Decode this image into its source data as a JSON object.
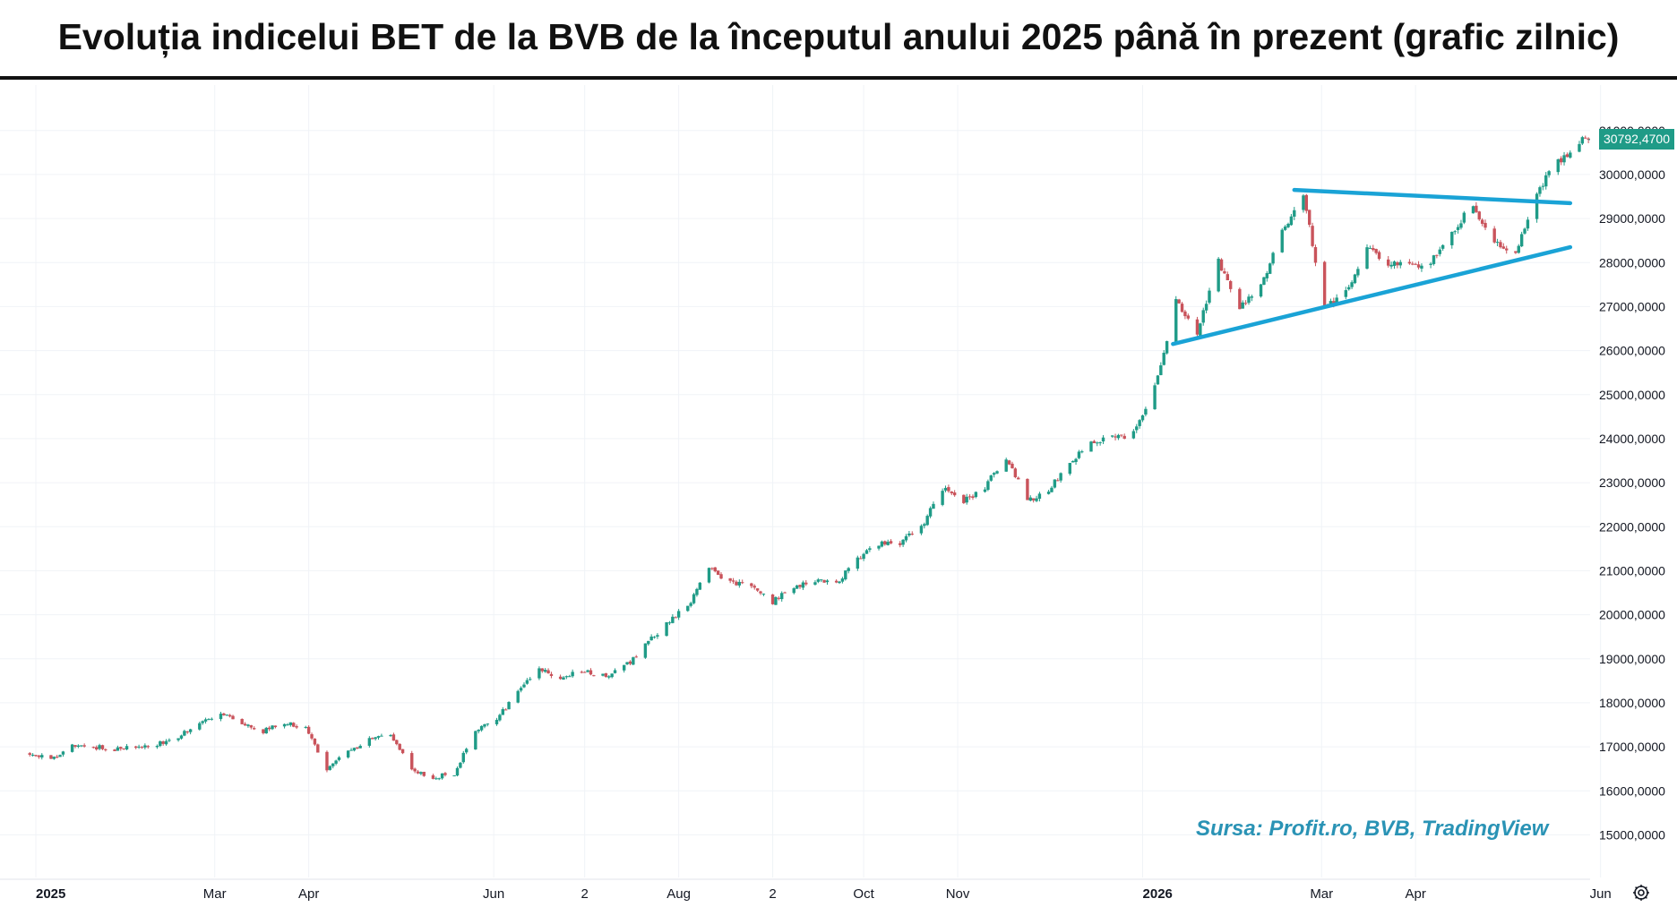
{
  "title": "Evoluția indicelui BET de la BVB de la începutul anului 2025 până în prezent (grafic zilnic)",
  "source": "Sursa: Profit.ro, BVB, TradingView",
  "last_price_label": "30792,4700",
  "colors": {
    "up": "#1f9b87",
    "down": "#c9535b",
    "trendline": "#1aa3d6",
    "badge": "#1f9b87",
    "grid": "#f0f3f7",
    "text": "#131722"
  },
  "icons": {
    "settings": "gear-icon"
  },
  "chart_data": {
    "type": "candlestick",
    "title": "Evoluția indicelui BET de la BVB de la începutul anului 2025 până în prezent (grafic zilnic)",
    "xlabel": "",
    "ylabel": "",
    "ylim": [
      14500,
      31300
    ],
    "x_range": [
      "2025-01-01",
      "2026-06-12"
    ],
    "y_ticks": [
      {
        "value": 15000,
        "label": "15000,0000"
      },
      {
        "value": 16000,
        "label": "16000,0000"
      },
      {
        "value": 17000,
        "label": "17000,0000"
      },
      {
        "value": 18000,
        "label": "18000,0000"
      },
      {
        "value": 19000,
        "label": "19000,0000"
      },
      {
        "value": 20000,
        "label": "20000,0000"
      },
      {
        "value": 21000,
        "label": "21000,0000"
      },
      {
        "value": 22000,
        "label": "22000,0000"
      },
      {
        "value": 23000,
        "label": "23000,0000"
      },
      {
        "value": 24000,
        "label": "24000,0000"
      },
      {
        "value": 25000,
        "label": "25000,0000"
      },
      {
        "value": 26000,
        "label": "26000,0000"
      },
      {
        "value": 27000,
        "label": "27000,0000"
      },
      {
        "value": 28000,
        "label": "28000,0000"
      },
      {
        "value": 29000,
        "label": "29000,0000"
      },
      {
        "value": 30000,
        "label": "30000,0000"
      },
      {
        "value": 31000,
        "label": "31000,0000"
      }
    ],
    "x_ticks": [
      {
        "date": "2025-01-01",
        "label": "2025",
        "bold": true
      },
      {
        "date": "2025-03-01",
        "label": "Mar",
        "bold": false
      },
      {
        "date": "2025-04-01",
        "label": "Apr",
        "bold": false
      },
      {
        "date": "2025-06-01",
        "label": "Jun",
        "bold": false
      },
      {
        "date": "2025-07-01",
        "label": "2",
        "bold": false
      },
      {
        "date": "2025-08-01",
        "label": "Aug",
        "bold": false
      },
      {
        "date": "2025-09-01",
        "label": "2",
        "bold": false
      },
      {
        "date": "2025-10-01",
        "label": "Oct",
        "bold": false
      },
      {
        "date": "2025-11-01",
        "label": "Nov",
        "bold": false
      },
      {
        "date": "2026-01-01",
        "label": "2026",
        "bold": true
      },
      {
        "date": "2026-03-01",
        "label": "Mar",
        "bold": false
      },
      {
        "date": "2026-04-01",
        "label": "Apr",
        "bold": false
      },
      {
        "date": "2026-06-01",
        "label": "Jun",
        "bold": false
      }
    ],
    "close_path": [
      [
        "2024-12-30",
        16850
      ],
      [
        "2025-01-06",
        16700
      ],
      [
        "2025-01-13",
        17050
      ],
      [
        "2025-01-20",
        17000
      ],
      [
        "2025-01-27",
        16950
      ],
      [
        "2025-02-03",
        16980
      ],
      [
        "2025-02-10",
        17050
      ],
      [
        "2025-02-17",
        17250
      ],
      [
        "2025-02-24",
        17550
      ],
      [
        "2025-03-03",
        17800
      ],
      [
        "2025-03-10",
        17550
      ],
      [
        "2025-03-17",
        17350
      ],
      [
        "2025-03-24",
        17550
      ],
      [
        "2025-03-31",
        17400
      ],
      [
        "2025-04-07",
        16500
      ],
      [
        "2025-04-14",
        16900
      ],
      [
        "2025-04-21",
        17150
      ],
      [
        "2025-04-28",
        17300
      ],
      [
        "2025-05-05",
        16500
      ],
      [
        "2025-05-12",
        16300
      ],
      [
        "2025-05-19",
        16400
      ],
      [
        "2025-05-26",
        17400
      ],
      [
        "2025-06-02",
        17600
      ],
      [
        "2025-06-09",
        18300
      ],
      [
        "2025-06-16",
        18800
      ],
      [
        "2025-06-23",
        18500
      ],
      [
        "2025-06-30",
        18750
      ],
      [
        "2025-07-07",
        18600
      ],
      [
        "2025-07-14",
        18800
      ],
      [
        "2025-07-21",
        19300
      ],
      [
        "2025-07-28",
        19800
      ],
      [
        "2025-08-04",
        20200
      ],
      [
        "2025-08-11",
        21050
      ],
      [
        "2025-08-18",
        20750
      ],
      [
        "2025-08-25",
        20700
      ],
      [
        "2025-09-01",
        20300
      ],
      [
        "2025-09-08",
        20650
      ],
      [
        "2025-09-15",
        20800
      ],
      [
        "2025-09-22",
        20700
      ],
      [
        "2025-09-29",
        21300
      ],
      [
        "2025-10-06",
        21600
      ],
      [
        "2025-10-13",
        21650
      ],
      [
        "2025-10-20",
        22000
      ],
      [
        "2025-10-27",
        22850
      ],
      [
        "2025-11-03",
        22600
      ],
      [
        "2025-11-10",
        22900
      ],
      [
        "2025-11-17",
        23600
      ],
      [
        "2025-11-24",
        22600
      ],
      [
        "2025-12-01",
        22800
      ],
      [
        "2025-12-08",
        23500
      ],
      [
        "2025-12-15",
        23900
      ],
      [
        "2025-12-22",
        24000
      ],
      [
        "2025-12-29",
        24100
      ],
      [
        "2026-01-05",
        25200
      ],
      [
        "2026-01-12",
        27100
      ],
      [
        "2026-01-19",
        26400
      ],
      [
        "2026-01-26",
        28000
      ],
      [
        "2026-02-02",
        27000
      ],
      [
        "2026-02-09",
        27500
      ],
      [
        "2026-02-16",
        28700
      ],
      [
        "2026-02-23",
        29500
      ],
      [
        "2026-03-02",
        27000
      ],
      [
        "2026-03-09",
        27300
      ],
      [
        "2026-03-16",
        28300
      ],
      [
        "2026-03-23",
        28000
      ],
      [
        "2026-03-30",
        27900
      ],
      [
        "2026-04-06",
        28000
      ],
      [
        "2026-04-13",
        28700
      ],
      [
        "2026-04-20",
        29300
      ],
      [
        "2026-04-27",
        28500
      ],
      [
        "2026-05-04",
        28200
      ],
      [
        "2026-05-11",
        29600
      ],
      [
        "2026-05-18",
        30300
      ],
      [
        "2026-05-25",
        30750
      ],
      [
        "2026-05-28",
        30792.47
      ]
    ],
    "trendlines": [
      {
        "from": [
          "2026-02-20",
          29650
        ],
        "to": [
          "2026-05-22",
          29350
        ]
      },
      {
        "from": [
          "2026-01-11",
          26150
        ],
        "to": [
          "2026-05-22",
          28350
        ]
      }
    ],
    "last_close": 30792.47
  }
}
